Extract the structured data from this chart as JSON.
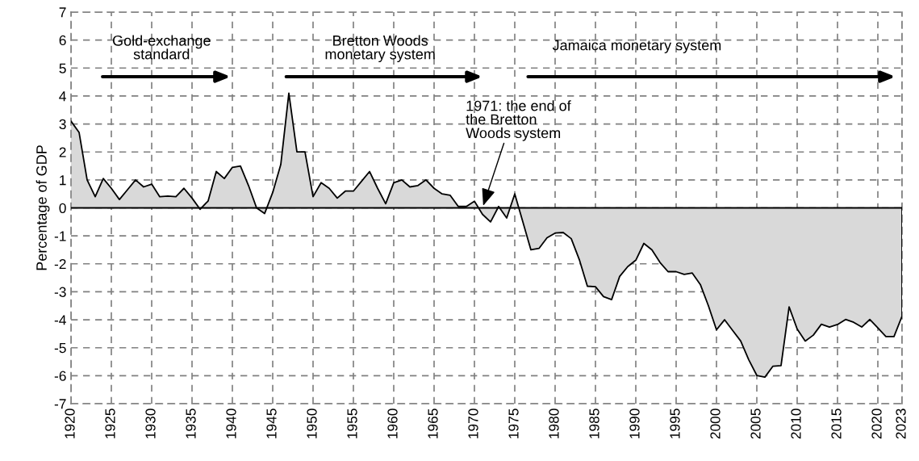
{
  "chart_data": {
    "type": "area",
    "ylabel": "Percentage of GDP",
    "x": [
      1920,
      1921,
      1922,
      1923,
      1924,
      1925,
      1926,
      1927,
      1928,
      1929,
      1930,
      1931,
      1932,
      1933,
      1934,
      1935,
      1936,
      1937,
      1938,
      1939,
      1940,
      1941,
      1942,
      1943,
      1944,
      1945,
      1946,
      1947,
      1948,
      1949,
      1950,
      1951,
      1952,
      1953,
      1954,
      1955,
      1956,
      1957,
      1958,
      1959,
      1960,
      1961,
      1962,
      1963,
      1964,
      1965,
      1966,
      1967,
      1968,
      1969,
      1970,
      1971,
      1972,
      1973,
      1974,
      1975,
      1976,
      1977,
      1978,
      1979,
      1980,
      1981,
      1982,
      1983,
      1984,
      1985,
      1986,
      1987,
      1988,
      1989,
      1990,
      1991,
      1992,
      1993,
      1994,
      1995,
      1996,
      1997,
      1998,
      1999,
      2000,
      2001,
      2002,
      2003,
      2004,
      2005,
      2006,
      2007,
      2008,
      2009,
      2010,
      2011,
      2012,
      2013,
      2014,
      2015,
      2016,
      2017,
      2018,
      2019,
      2020,
      2021,
      2022,
      2023
    ],
    "series": [
      {
        "color": "#d9d9d9",
        "values": [
          3.1,
          2.7,
          1.0,
          0.4,
          1.05,
          0.7,
          0.3,
          0.65,
          1.0,
          0.75,
          0.85,
          0.4,
          0.42,
          0.4,
          0.7,
          0.35,
          -0.05,
          0.25,
          1.3,
          1.05,
          1.45,
          1.5,
          0.8,
          0.0,
          -0.2,
          0.55,
          1.55,
          4.1,
          2.0,
          2.0,
          0.4,
          0.9,
          0.7,
          0.35,
          0.6,
          0.6,
          0.95,
          1.3,
          0.7,
          0.15,
          0.9,
          1.0,
          0.75,
          0.8,
          1.0,
          0.7,
          0.5,
          0.45,
          0.05,
          0.05,
          0.24,
          -0.23,
          -0.5,
          0.05,
          -0.36,
          0.5,
          -0.5,
          -1.5,
          -1.45,
          -1.07,
          -0.9,
          -0.88,
          -1.1,
          -1.85,
          -2.8,
          -2.82,
          -3.17,
          -3.28,
          -2.45,
          -2.1,
          -1.87,
          -1.27,
          -1.5,
          -1.95,
          -2.28,
          -2.28,
          -2.38,
          -2.33,
          -2.74,
          -3.5,
          -4.36,
          -4.0,
          -4.38,
          -4.76,
          -5.43,
          -5.99,
          -6.05,
          -5.66,
          -5.64,
          -3.54,
          -4.33,
          -4.76,
          -4.55,
          -4.16,
          -4.26,
          -4.17,
          -3.99,
          -4.09,
          -4.26,
          -3.99,
          -4.29,
          -4.6,
          -4.6,
          -3.87
        ]
      }
    ],
    "xlim": [
      1920,
      2023
    ],
    "xticks": [
      1920,
      1925,
      1930,
      1935,
      1940,
      1945,
      1950,
      1955,
      1960,
      1965,
      1970,
      1975,
      1980,
      1985,
      1990,
      1995,
      2000,
      2005,
      2010,
      2015,
      2020,
      2023
    ],
    "ylim": [
      -7,
      7
    ],
    "yticks": [
      {
        "value": -7,
        "label": "-7"
      },
      {
        "value": -6,
        "label": "-6"
      },
      {
        "value": -5,
        "label": "-5"
      },
      {
        "value": -4,
        "label": "-4"
      },
      {
        "value": -3,
        "label": "-3"
      },
      {
        "value": -2,
        "label": "-2"
      },
      {
        "value": -1,
        "label": "-1"
      },
      0,
      1,
      2,
      3,
      4,
      5,
      6,
      7
    ],
    "grid": true,
    "ref_lines": [
      {
        "axis": "y",
        "value": 0,
        "color": "#000000"
      }
    ],
    "annotations": [
      "Gold-exchange\nstandard",
      "Bretton Woods\nmonetary system",
      "Jamaica monetary system",
      {
        "text": "1971: the end of\nthe Bretton\nWoods system",
        "x": 1971,
        "y": 0
      }
    ]
  }
}
